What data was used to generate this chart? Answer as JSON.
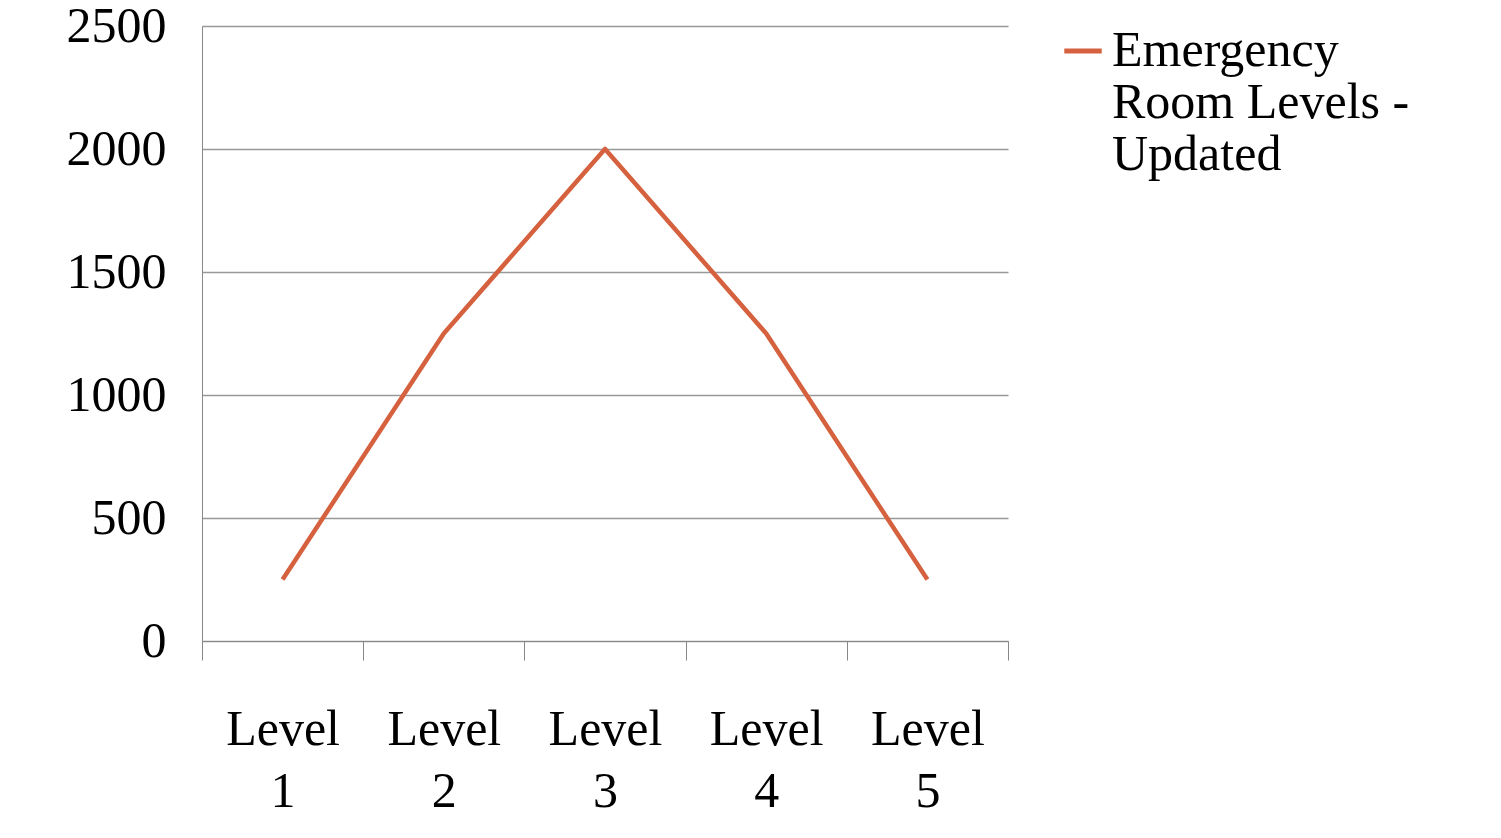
{
  "chart_data": {
    "type": "line",
    "categories": [
      "Level 1",
      "Level 2",
      "Level 3",
      "Level 4",
      "Level 5"
    ],
    "series": [
      {
        "name": "Emergency Room Levels - Updated",
        "color": "#d5613f",
        "values": [
          250,
          1250,
          2000,
          1250,
          250
        ]
      }
    ],
    "ylim": [
      0,
      2500
    ],
    "yticks": [
      0,
      500,
      1000,
      1500,
      2000,
      2500
    ],
    "grid": "y",
    "legend": "right",
    "marker": "none",
    "line_style": "solid"
  }
}
